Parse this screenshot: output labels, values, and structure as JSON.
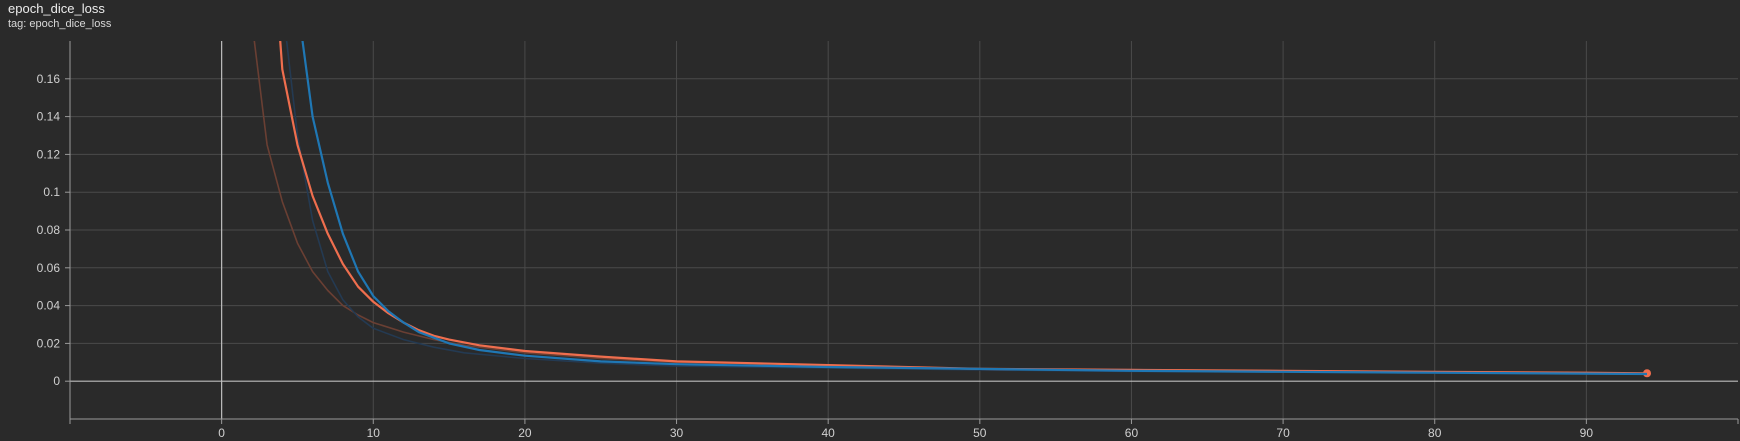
{
  "header": {
    "title": "epoch_dice_loss",
    "tag": "tag: epoch_dice_loss"
  },
  "chart_data": {
    "type": "line",
    "title": "epoch_dice_loss",
    "xlabel": "",
    "ylabel": "",
    "xlim": [
      -10,
      100
    ],
    "ylim": [
      -0.02,
      0.18
    ],
    "x_ticks": [
      0,
      10,
      20,
      30,
      40,
      50,
      60,
      70,
      80,
      90
    ],
    "x_tick_labels": [
      "0",
      "10",
      "20",
      "30",
      "40",
      "50",
      "60",
      "70",
      "80",
      "90"
    ],
    "y_ticks": [
      0,
      0.02,
      0.04,
      0.06,
      0.08,
      0.1,
      0.12,
      0.14,
      0.16
    ],
    "y_tick_labels": [
      "0",
      "0.02",
      "0.04",
      "0.06",
      "0.08",
      "0.1",
      "0.12",
      "0.14",
      "0.16"
    ],
    "grid": true,
    "legend": "none",
    "series": [
      {
        "color": "#ef6e4e",
        "raw_color": "#6a3f33",
        "smoothed_points": [
          [
            3.5,
            0.22
          ],
          [
            4,
            0.165
          ],
          [
            5,
            0.125
          ],
          [
            6,
            0.098
          ],
          [
            7,
            0.078
          ],
          [
            8,
            0.062
          ],
          [
            9,
            0.05
          ],
          [
            10,
            0.042
          ],
          [
            11,
            0.036
          ],
          [
            12,
            0.031
          ],
          [
            13,
            0.027
          ],
          [
            14,
            0.024
          ],
          [
            15,
            0.022
          ],
          [
            17,
            0.019
          ],
          [
            20,
            0.016
          ],
          [
            25,
            0.013
          ],
          [
            30,
            0.0105
          ],
          [
            35,
            0.0095
          ],
          [
            40,
            0.0085
          ],
          [
            45,
            0.0075
          ],
          [
            50,
            0.0065
          ],
          [
            60,
            0.006
          ],
          [
            70,
            0.0055
          ],
          [
            80,
            0.005
          ],
          [
            90,
            0.0045
          ],
          [
            94,
            0.0042
          ]
        ],
        "raw_points": [
          [
            1.5,
            0.23
          ],
          [
            2,
            0.19
          ],
          [
            3,
            0.125
          ],
          [
            4,
            0.095
          ],
          [
            5,
            0.073
          ],
          [
            6,
            0.058
          ],
          [
            7,
            0.048
          ],
          [
            8,
            0.04
          ],
          [
            9,
            0.035
          ],
          [
            10,
            0.031
          ],
          [
            12,
            0.026
          ],
          [
            14,
            0.022
          ],
          [
            16,
            0.019
          ],
          [
            20,
            0.015
          ],
          [
            25,
            0.012
          ],
          [
            30,
            0.01
          ],
          [
            40,
            0.0085
          ],
          [
            50,
            0.0065
          ],
          [
            60,
            0.006
          ],
          [
            70,
            0.0055
          ],
          [
            80,
            0.005
          ],
          [
            94,
            0.0042
          ]
        ]
      },
      {
        "color": "#1f77b4",
        "raw_color": "#243a52",
        "smoothed_points": [
          [
            5,
            0.2
          ],
          [
            6,
            0.14
          ],
          [
            7,
            0.105
          ],
          [
            8,
            0.078
          ],
          [
            9,
            0.058
          ],
          [
            10,
            0.045
          ],
          [
            11,
            0.037
          ],
          [
            12,
            0.031
          ],
          [
            13,
            0.026
          ],
          [
            14,
            0.023
          ],
          [
            15,
            0.02
          ],
          [
            17,
            0.0165
          ],
          [
            20,
            0.0135
          ],
          [
            25,
            0.0105
          ],
          [
            30,
            0.009
          ],
          [
            40,
            0.0075
          ],
          [
            50,
            0.0065
          ],
          [
            60,
            0.0055
          ],
          [
            70,
            0.005
          ],
          [
            80,
            0.0045
          ],
          [
            90,
            0.004
          ],
          [
            94,
            0.0038
          ]
        ],
        "raw_points": [
          [
            4,
            0.2
          ],
          [
            5,
            0.13
          ],
          [
            6,
            0.085
          ],
          [
            7,
            0.058
          ],
          [
            8,
            0.043
          ],
          [
            9,
            0.034
          ],
          [
            10,
            0.028
          ],
          [
            12,
            0.022
          ],
          [
            14,
            0.018
          ],
          [
            16,
            0.015
          ],
          [
            20,
            0.012
          ],
          [
            25,
            0.0095
          ],
          [
            30,
            0.008
          ],
          [
            40,
            0.007
          ],
          [
            50,
            0.006
          ],
          [
            60,
            0.0052
          ],
          [
            70,
            0.0048
          ],
          [
            80,
            0.0043
          ],
          [
            94,
            0.0037
          ]
        ]
      }
    ]
  }
}
